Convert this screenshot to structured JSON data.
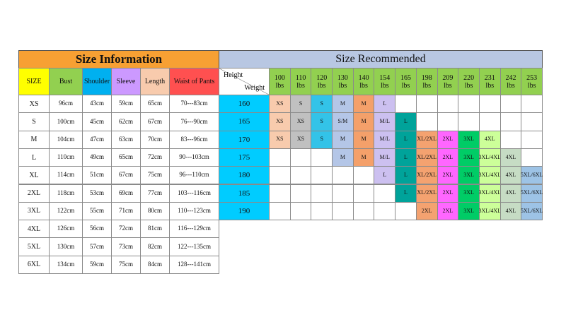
{
  "size_information": {
    "title": "Size Information",
    "header": [
      "SIZE",
      "Bust",
      "Shoulder",
      "Sleeve",
      "Length",
      "Waist of Pants"
    ],
    "rows": [
      [
        "XS",
        "96cm",
        "43cm",
        "59cm",
        "65cm",
        "70---83cm"
      ],
      [
        "S",
        "100cm",
        "45cm",
        "62cm",
        "67cm",
        "76---90cm"
      ],
      [
        "M",
        "104cm",
        "47cm",
        "63cm",
        "70cm",
        "83---96cm"
      ],
      [
        "L",
        "110cm",
        "49cm",
        "65cm",
        "72cm",
        "90---103cm"
      ],
      [
        "XL",
        "114cm",
        "51cm",
        "67cm",
        "75cm",
        "96---110cm"
      ],
      [
        "2XL",
        "118cm",
        "53cm",
        "69cm",
        "77cm",
        "103---116cm"
      ],
      [
        "3XL",
        "122cm",
        "55cm",
        "71cm",
        "80cm",
        "110---123cm"
      ],
      [
        "4XL",
        "126cm",
        "56cm",
        "72cm",
        "81cm",
        "116---129cm"
      ],
      [
        "5XL",
        "130cm",
        "57cm",
        "73cm",
        "82cm",
        "122---135cm"
      ],
      [
        "6XL",
        "134cm",
        "59cm",
        "75cm",
        "84cm",
        "128---141cm"
      ]
    ]
  },
  "size_recommended": {
    "title": "Size Recommended",
    "corner_top": "Height",
    "corner_bottom": "Weight",
    "unit": "lbs",
    "weights": [
      "100",
      "110",
      "120",
      "130",
      "140",
      "154",
      "165",
      "198",
      "209",
      "220",
      "231",
      "242",
      "253"
    ],
    "rows": [
      {
        "height": "160",
        "cells": [
          "XS",
          "S",
          "S",
          "M",
          "M",
          "L",
          null,
          null,
          null,
          null,
          null,
          null,
          null
        ]
      },
      {
        "height": "165",
        "cells": [
          "XS",
          "XS",
          "S",
          "S/M",
          "M",
          "M/L",
          "L",
          null,
          null,
          null,
          null,
          null,
          null
        ]
      },
      {
        "height": "170",
        "cells": [
          "XS",
          "XS",
          "S",
          "M",
          "M",
          "M/L",
          "L",
          "XL/2XL",
          "2XL",
          "3XL",
          "4XL",
          null,
          null
        ]
      },
      {
        "height": "175",
        "cells": [
          null,
          null,
          null,
          "M",
          "M",
          "M/L",
          "L",
          "XL/2XL",
          "2XL",
          "3XL",
          "3XL/4XL",
          "4XL",
          null
        ]
      },
      {
        "height": "180",
        "cells": [
          null,
          null,
          null,
          null,
          null,
          "L",
          "L",
          "XL/2XL",
          "2XL",
          "3XL",
          "3XL/4XL",
          "4XL",
          "5XL/6XL"
        ]
      },
      {
        "height": "185",
        "cells": [
          null,
          null,
          null,
          null,
          null,
          null,
          "L",
          "XL/2XL",
          "2XL",
          "3XL",
          "3XL/4XL",
          "4XL",
          "5XL/6XL"
        ]
      },
      {
        "height": "190",
        "cells": [
          null,
          null,
          null,
          null,
          null,
          null,
          null,
          "2XL",
          "2XL",
          "3XL",
          "3XL/4XL",
          "4XL",
          "5XL/6XL"
        ]
      }
    ]
  }
}
